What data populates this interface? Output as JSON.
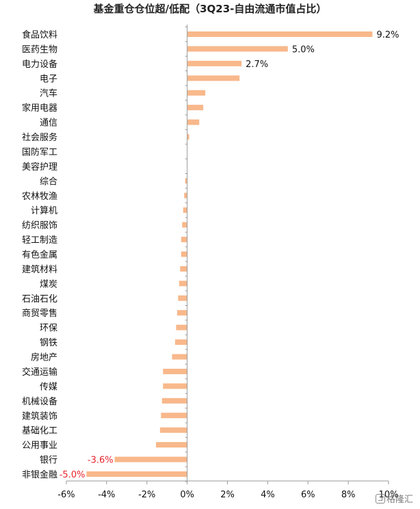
{
  "chart_data": {
    "type": "bar",
    "orientation": "horizontal",
    "title": "基金重仓仓位超/低配（3Q23-自由流通市值占比）",
    "categories": [
      "食品饮料",
      "医药生物",
      "电力设备",
      "电子",
      "汽车",
      "家用电器",
      "通信",
      "社会服务",
      "国防军工",
      "美容护理",
      "综合",
      "农林牧渔",
      "计算机",
      "纺织服饰",
      "轻工制造",
      "有色金属",
      "建筑材料",
      "煤炭",
      "石油石化",
      "商贸零售",
      "环保",
      "钢铁",
      "房地产",
      "交通运输",
      "传媒",
      "机械设备",
      "建筑装饰",
      "基础化工",
      "公用事业",
      "银行",
      "非银金融"
    ],
    "values": [
      9.2,
      5.0,
      2.7,
      2.6,
      0.9,
      0.8,
      0.6,
      0.1,
      0.0,
      0.0,
      -0.1,
      -0.15,
      -0.2,
      -0.25,
      -0.3,
      -0.3,
      -0.35,
      -0.4,
      -0.45,
      -0.5,
      -0.55,
      -0.6,
      -0.75,
      -1.2,
      -1.2,
      -1.25,
      -1.3,
      -1.35,
      -1.55,
      -3.6,
      -5.0
    ],
    "data_labels": [
      {
        "category": "食品饮料",
        "text": "9.2%"
      },
      {
        "category": "医药生物",
        "text": "5.0%"
      },
      {
        "category": "电力设备",
        "text": "2.7%"
      },
      {
        "category": "银行",
        "text": "-3.6%"
      },
      {
        "category": "非银金融",
        "text": "-5.0%"
      }
    ],
    "xlim": [
      -6,
      10
    ],
    "xticks": [
      "-6%",
      "-4%",
      "-2%",
      "0%",
      "2%",
      "4%",
      "6%",
      "8%",
      "10%"
    ],
    "xtick_values": [
      -6,
      -4,
      -2,
      0,
      2,
      4,
      6,
      8,
      10
    ],
    "grid": false,
    "colors": {
      "bar": "#F8B88B",
      "axis": "#999999",
      "negative_label": "#E8232A",
      "positive_label": "#111111"
    }
  },
  "watermark": {
    "text": "格隆汇",
    "icon": "logo-icon"
  }
}
